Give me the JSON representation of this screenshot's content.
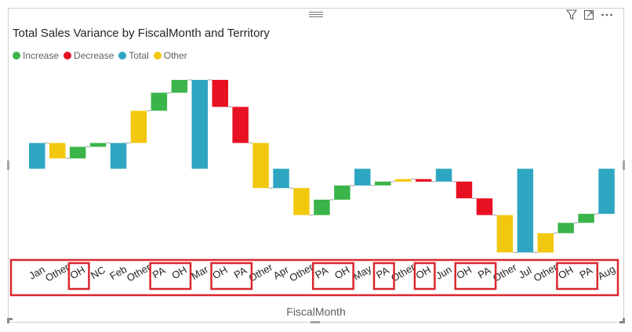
{
  "chart_data": {
    "type": "waterfall",
    "title": "Total Sales Variance by FiscalMonth and Territory",
    "xlabel": "FiscalMonth",
    "ylabel": "",
    "legend_position": "top-left",
    "grid": false,
    "legend": [
      {
        "name": "Increase",
        "color": "#3bb44a"
      },
      {
        "name": "Decrease",
        "color": "#e81123"
      },
      {
        "name": "Total",
        "color": "#2ea6c1"
      },
      {
        "name": "Other",
        "color": "#f2c80f"
      }
    ],
    "categories": [
      "Jan",
      "Other",
      "OH",
      "NC",
      "Feb",
      "Other",
      "PA",
      "OH",
      "Mar",
      "OH",
      "PA",
      "Other",
      "Apr",
      "Other",
      "PA",
      "OH",
      "May",
      "PA",
      "Other",
      "OH",
      "Jun",
      "OH",
      "PA",
      "Other",
      "Jul",
      "Other",
      "OH",
      "PA",
      "Aug"
    ],
    "kinds": [
      "total",
      "other",
      "increase",
      "increase",
      "total",
      "other",
      "increase",
      "increase",
      "total",
      "decrease",
      "decrease",
      "other",
      "total",
      "other",
      "increase",
      "increase",
      "total",
      "increase",
      "other",
      "decrease",
      "total",
      "decrease",
      "decrease",
      "other",
      "total",
      "other",
      "increase",
      "increase",
      "total"
    ],
    "deltas": [
      0,
      -1.2,
      0.9,
      0.3,
      0,
      2.5,
      1.4,
      1.0,
      0,
      -2.1,
      -2.8,
      -3.5,
      0,
      -2.1,
      1.2,
      1.1,
      0,
      0.3,
      0.2,
      -0.2,
      0,
      -1.3,
      -1.3,
      -2.9,
      0,
      1.5,
      0.8,
      0.7,
      0
    ],
    "values": [
      2.0,
      0.8,
      1.7,
      2.0,
      2.0,
      4.5,
      5.9,
      6.9,
      6.9,
      4.8,
      2.0,
      -1.5,
      -1.5,
      -3.6,
      -2.4,
      -1.3,
      -1.3,
      -1.0,
      -0.8,
      -1.0,
      -1.0,
      -2.3,
      -3.6,
      -6.5,
      -6.5,
      -5.0,
      -4.2,
      -3.5,
      -3.5
    ],
    "highlighted_labels": [
      2,
      [
        6,
        7
      ],
      [
        9,
        10
      ],
      [
        14,
        15
      ],
      17,
      19,
      [
        21,
        22
      ],
      [
        26,
        27
      ]
    ]
  },
  "header": {
    "filter_icon": "filter-icon",
    "focus_icon": "focus-mode-icon",
    "more_icon": "more-options-icon",
    "drag_icon": "drag-handle-icon"
  }
}
